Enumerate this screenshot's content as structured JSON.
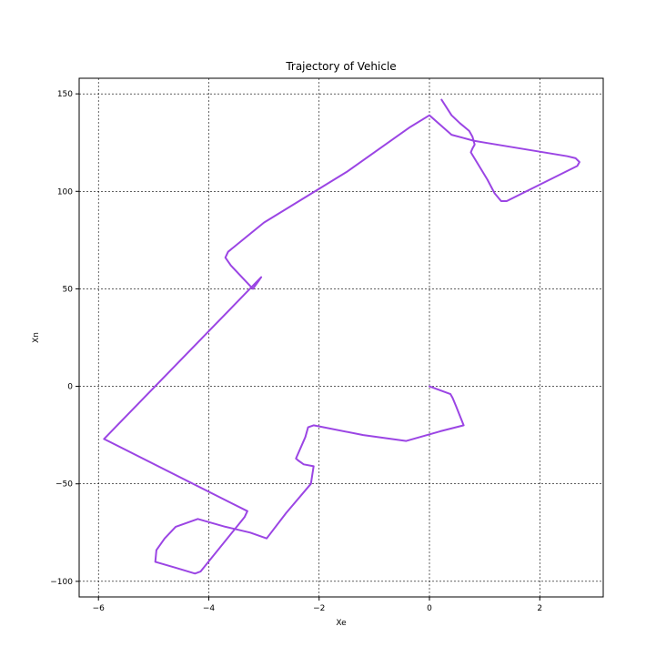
{
  "chart_data": {
    "type": "line",
    "title": "Trajectory of Vehicle",
    "xlabel": "Xe",
    "ylabel": "Xn",
    "xlim": [
      -6.35,
      3.15
    ],
    "ylim": [
      -108,
      158
    ],
    "xticks": [
      -6,
      -4,
      -2,
      0,
      2
    ],
    "xtick_labels": [
      "−6",
      "−4",
      "−2",
      "0",
      "2"
    ],
    "yticks": [
      -100,
      -50,
      0,
      50,
      100,
      150
    ],
    "ytick_labels": [
      "−100",
      "−50",
      "0",
      "50",
      "100",
      "150"
    ],
    "grid": true,
    "grid_style": "dashed",
    "series": [
      {
        "color": "#9b45e4",
        "x": [
          0.0,
          0.38,
          0.42,
          0.48,
          0.62,
          0.2,
          -0.42,
          -1.2,
          -2.1,
          -2.2,
          -2.25,
          -2.42,
          -2.38,
          -2.28,
          -2.1,
          -2.15,
          -2.6,
          -2.95,
          -3.25,
          -3.7,
          -4.2,
          -4.6,
          -4.8,
          -4.95,
          -4.97,
          -4.6,
          -4.25,
          -4.15,
          -3.35,
          -3.3,
          -5.9,
          -3.05,
          -3.1,
          -3.2,
          -3.6,
          -3.7,
          -3.65,
          -3.0,
          -1.5,
          -0.35,
          0.0,
          0.2,
          0.4,
          0.8,
          1.0,
          2.5,
          2.65,
          2.72,
          2.68,
          1.4,
          1.3,
          1.18,
          1.05,
          0.75,
          0.78,
          0.82,
          0.78,
          0.72,
          0.55,
          0.4,
          0.22
        ],
        "y": [
          0,
          -4,
          -6,
          -10,
          -20,
          -23,
          -28,
          -25,
          -20,
          -21,
          -26,
          -37,
          -38,
          -40,
          -41,
          -50,
          -65,
          -78,
          -75,
          -72,
          -68,
          -72,
          -78,
          -84,
          -90,
          -93,
          -96,
          -95,
          -67,
          -64,
          -27,
          56,
          54,
          50,
          62,
          66,
          69,
          84,
          110,
          133,
          139,
          134,
          129,
          126,
          125,
          118,
          117,
          115,
          113,
          95,
          95,
          99,
          106,
          120,
          122,
          124,
          128,
          131,
          135,
          139,
          147
        ]
      }
    ]
  }
}
